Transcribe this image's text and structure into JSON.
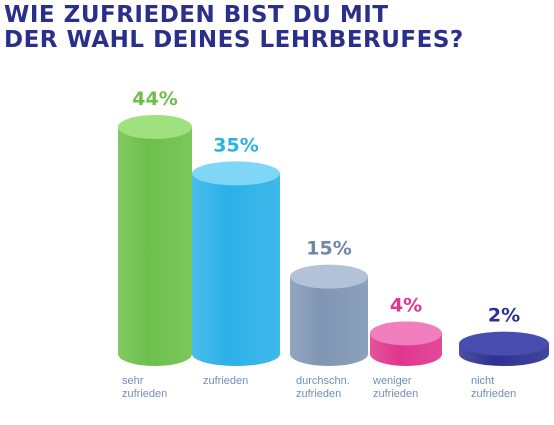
{
  "header": {
    "title_line1": "WIE ZUFRIEDEN BIST DU MIT",
    "title_line2": "DER WAHL DEINES LEHRBERUFES?"
  },
  "colors": {
    "title": "#2a2f8a",
    "category_label": "#6f8fb6"
  },
  "chart_data": {
    "type": "bar",
    "style": "3d-cylinder",
    "categories": [
      [
        "sehr",
        "zufrieden"
      ],
      [
        "zufrieden"
      ],
      [
        "durchschn.",
        "zufrieden"
      ],
      [
        "weniger",
        "zufrieden"
      ],
      [
        "nicht",
        "zufrieden"
      ]
    ],
    "values": [
      44,
      35,
      15,
      4,
      2
    ],
    "value_labels": [
      "44%",
      "35%",
      "15%",
      "4%",
      "2%"
    ],
    "unit": "%",
    "ylim": [
      0,
      44
    ],
    "grid": false,
    "legend": "none",
    "colors": [
      {
        "body": "#6cc04a",
        "top": "#9fe07f",
        "label": "#6cc04a"
      },
      {
        "body": "#2bb0e8",
        "top": "#7fd6f6",
        "label": "#2bb0e8"
      },
      {
        "body": "#7f96b4",
        "top": "#b3c2d6",
        "label": "#6f86a6"
      },
      {
        "body": "#e0368e",
        "top": "#f27fbd",
        "label": "#e0368e"
      },
      {
        "body": "#2e3192",
        "top": "#4a4db0",
        "label": "#2e3192"
      }
    ]
  }
}
